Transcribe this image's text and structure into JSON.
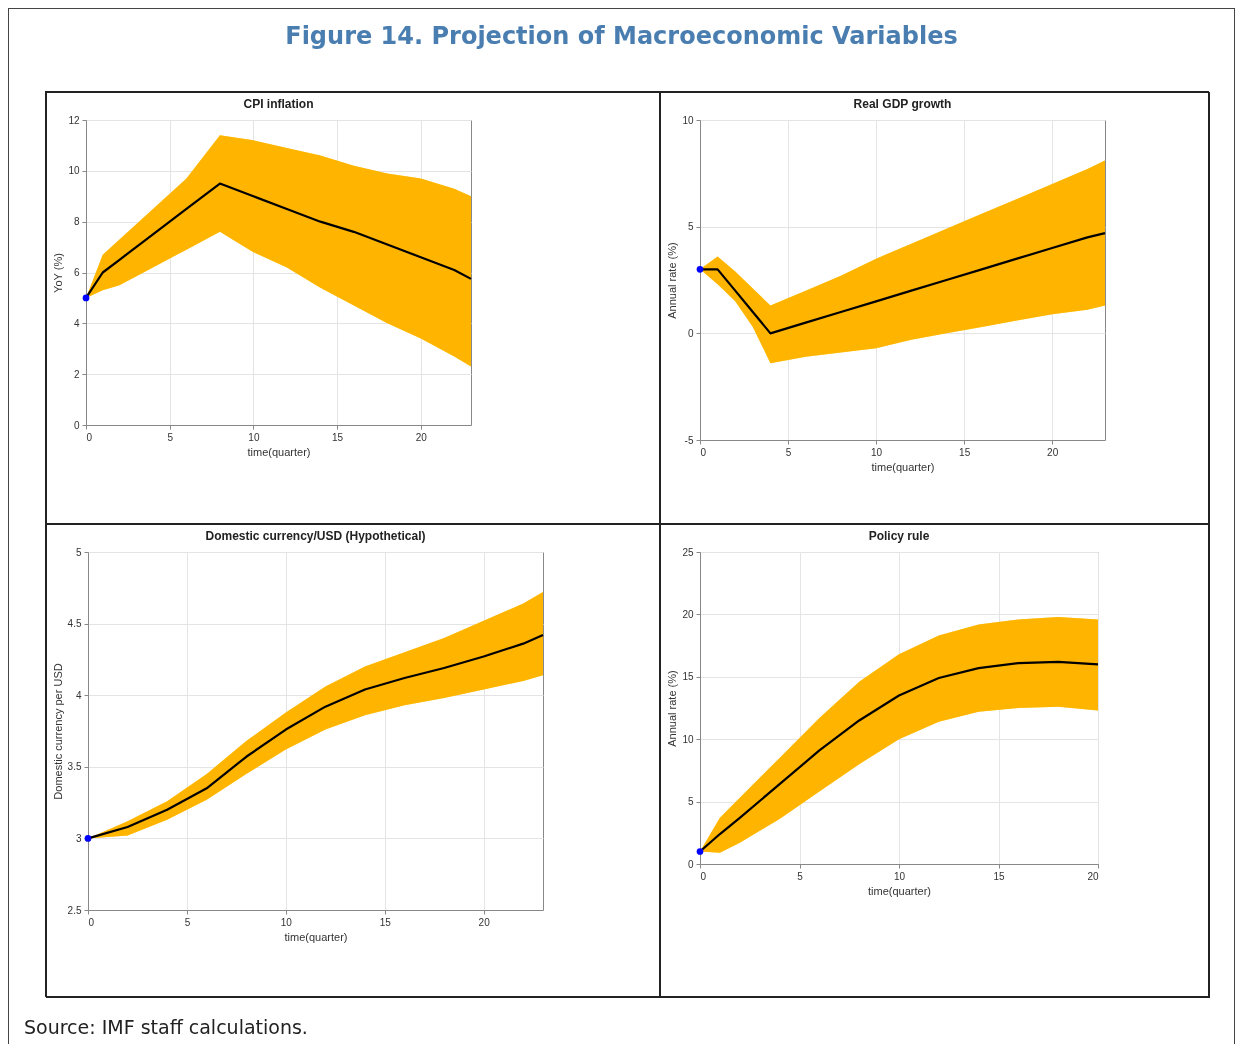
{
  "chart_data": [
    {
      "type": "line",
      "title": "CPI inflation",
      "xlabel": "time(quarter)",
      "ylabel": "YoY (%)",
      "annotations": [
        "Figure 14. Projection of Macroeconomic Variables"
      ],
      "xlim": [
        0,
        23
      ],
      "xticks": [
        0,
        5,
        10,
        15,
        20
      ],
      "ylim": [
        0,
        12
      ],
      "yticks": [
        0,
        2,
        4,
        6,
        8,
        10,
        12
      ],
      "grid": true,
      "series": [
        {
          "type": "line",
          "color": "#000000",
          "x": [
            0,
            1,
            2,
            4,
            6,
            8,
            10,
            12,
            14,
            16,
            18,
            20,
            22,
            23
          ],
          "values": [
            5,
            6,
            6.5,
            7.5,
            8.5,
            9.5,
            9.0,
            8.5,
            8.0,
            7.6,
            7.1,
            6.6,
            6.1,
            5.75
          ],
          "upper": [
            5,
            6.7,
            7.3,
            8.5,
            9.7,
            11.4,
            11.2,
            10.9,
            10.6,
            10.2,
            9.9,
            9.7,
            9.3,
            9.0
          ],
          "lower": [
            5,
            5.3,
            5.5,
            6.2,
            6.9,
            7.6,
            6.8,
            6.2,
            5.4,
            4.7,
            4.0,
            3.4,
            2.7,
            2.3
          ]
        },
        {
          "type": "scatter",
          "color": "#0000ff",
          "marker": "circle",
          "x": [
            0
          ],
          "values": [
            5
          ]
        }
      ]
    },
    {
      "type": "line",
      "title": "Real GDP growth",
      "xlabel": "time(quarter)",
      "ylabel": "Annual rate (%)",
      "xlim": [
        0,
        23
      ],
      "xticks": [
        0,
        5,
        10,
        15,
        20
      ],
      "ylim": [
        -5,
        10
      ],
      "yticks": [
        -5,
        0,
        5,
        10
      ],
      "grid": true,
      "series": [
        {
          "type": "line",
          "color": "#000000",
          "x": [
            0,
            1,
            2,
            3,
            4,
            6,
            8,
            10,
            12,
            14,
            16,
            18,
            20,
            22,
            23
          ],
          "values": [
            3,
            3,
            2,
            1,
            0,
            0.5,
            1,
            1.5,
            2,
            2.5,
            3,
            3.5,
            4,
            4.5,
            4.7
          ],
          "upper": [
            3,
            3.6,
            2.9,
            2.1,
            1.3,
            2.0,
            2.7,
            3.5,
            4.2,
            4.9,
            5.6,
            6.3,
            7.0,
            7.7,
            8.1
          ],
          "lower": [
            3,
            2.3,
            1.5,
            0.3,
            -1.4,
            -1.1,
            -0.9,
            -0.7,
            -0.3,
            0.0,
            0.3,
            0.6,
            0.9,
            1.1,
            1.3
          ]
        },
        {
          "type": "scatter",
          "color": "#0000ff",
          "marker": "circle",
          "x": [
            0
          ],
          "values": [
            3
          ]
        }
      ]
    },
    {
      "type": "line",
      "title": "Domestic currency/USD (Hypothetical)",
      "xlabel": "time(quarter)",
      "ylabel": "Domestic currency per USD",
      "xlim": [
        0,
        23
      ],
      "xticks": [
        0,
        5,
        10,
        15,
        20
      ],
      "ylim": [
        2.5,
        5
      ],
      "yticks": [
        2.5,
        3,
        3.5,
        4,
        4.5,
        5
      ],
      "grid": true,
      "series": [
        {
          "type": "line",
          "color": "#000000",
          "x": [
            0,
            2,
            4,
            6,
            8,
            10,
            12,
            14,
            16,
            18,
            20,
            22,
            23
          ],
          "values": [
            3,
            3.08,
            3.2,
            3.35,
            3.57,
            3.76,
            3.92,
            4.04,
            4.12,
            4.19,
            4.27,
            4.36,
            4.42
          ],
          "upper": [
            3,
            3.12,
            3.26,
            3.45,
            3.68,
            3.88,
            4.06,
            4.2,
            4.3,
            4.4,
            4.52,
            4.64,
            4.72
          ],
          "lower": [
            3,
            3.02,
            3.13,
            3.27,
            3.45,
            3.62,
            3.76,
            3.86,
            3.93,
            3.98,
            4.04,
            4.1,
            4.14
          ]
        },
        {
          "type": "scatter",
          "color": "#0000ff",
          "marker": "circle",
          "x": [
            0
          ],
          "values": [
            3
          ]
        }
      ]
    },
    {
      "type": "line",
      "title": "Policy rule",
      "xlabel": "time(quarter)",
      "ylabel": "Annual rate (%)",
      "annotations": [
        "Source: IMF staff calculations."
      ],
      "xlim": [
        0,
        20
      ],
      "xticks": [
        0,
        5,
        10,
        15,
        20
      ],
      "ylim": [
        0,
        25
      ],
      "yticks": [
        0,
        5,
        10,
        15,
        20,
        25
      ],
      "grid": true,
      "series": [
        {
          "type": "line",
          "color": "#000000",
          "x": [
            0,
            1,
            2,
            4,
            6,
            8,
            10,
            12,
            14,
            16,
            18,
            20
          ],
          "values": [
            1,
            2.4,
            3.7,
            6.4,
            9.1,
            11.5,
            13.5,
            14.9,
            15.7,
            16.1,
            16.2,
            16.0
          ],
          "upper": [
            1,
            3.7,
            5.3,
            8.5,
            11.7,
            14.6,
            16.8,
            18.3,
            19.2,
            19.6,
            19.8,
            19.6
          ],
          "lower": [
            1,
            0.9,
            1.7,
            3.6,
            5.8,
            8.0,
            10.0,
            11.4,
            12.2,
            12.5,
            12.6,
            12.3
          ]
        },
        {
          "type": "scatter",
          "color": "#0000ff",
          "marker": "circle",
          "x": [
            0
          ],
          "values": [
            1
          ]
        }
      ]
    }
  ]
}
